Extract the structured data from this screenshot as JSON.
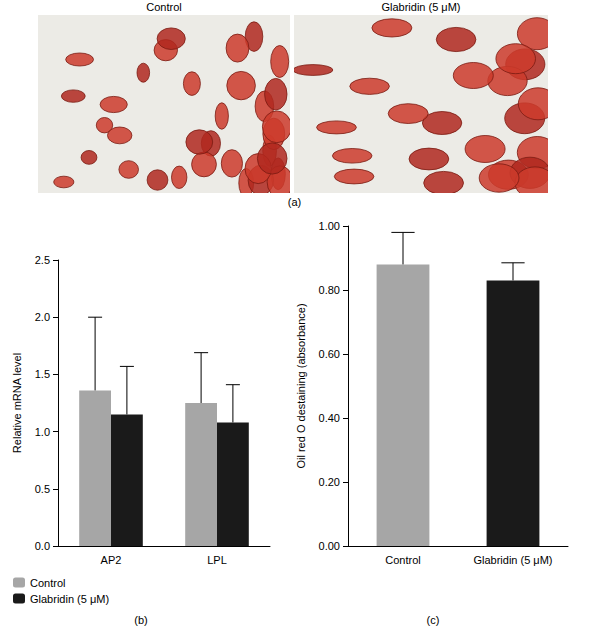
{
  "images": {
    "label": "(a)",
    "titles": [
      "Control",
      "Glabridin (5 μM)"
    ]
  },
  "chart_data": [
    {
      "type": "bar",
      "panel": "(b)",
      "y_label": "Relative mRNA level",
      "categories": [
        "AP2",
        "LPL"
      ],
      "series": [
        {
          "name": "Control",
          "color": "#a6a6a6",
          "values": [
            1.36,
            1.25
          ],
          "errors": [
            0.64,
            0.44
          ]
        },
        {
          "name": "Glabridin (5 μM)",
          "color": "#1a1a1a",
          "values": [
            1.15,
            1.08
          ],
          "errors": [
            0.42,
            0.33
          ]
        }
      ],
      "ylim": [
        0,
        2.5
      ],
      "yticks": [
        {
          "value": 0,
          "label": "0.0"
        },
        0.5,
        {
          "value": 1,
          "label": "1.0"
        },
        1.5,
        {
          "value": 2,
          "label": "2.0"
        },
        2.5
      ],
      "grid": false,
      "legend": "bottom"
    },
    {
      "type": "bar",
      "panel": "(c)",
      "y_label": "Oil red O destaining (absorbance)",
      "categories": [
        "Control",
        "Glabridin (5 μM)"
      ],
      "values": [
        0.88,
        0.83
      ],
      "errors": [
        0.1,
        0.055
      ],
      "colors": [
        "#a6a6a6",
        "#1a1a1a"
      ],
      "ylim": [
        0,
        1
      ],
      "yticks": [
        {
          "value": 0,
          "label": "0.00"
        },
        {
          "value": 0.2,
          "label": "0.20"
        },
        {
          "value": 0.4,
          "label": "0.40"
        },
        {
          "value": 0.6,
          "label": "0.60"
        },
        {
          "value": 0.8,
          "label": "0.80"
        },
        {
          "value": 1,
          "label": "1.00"
        }
      ],
      "grid": false
    }
  ]
}
